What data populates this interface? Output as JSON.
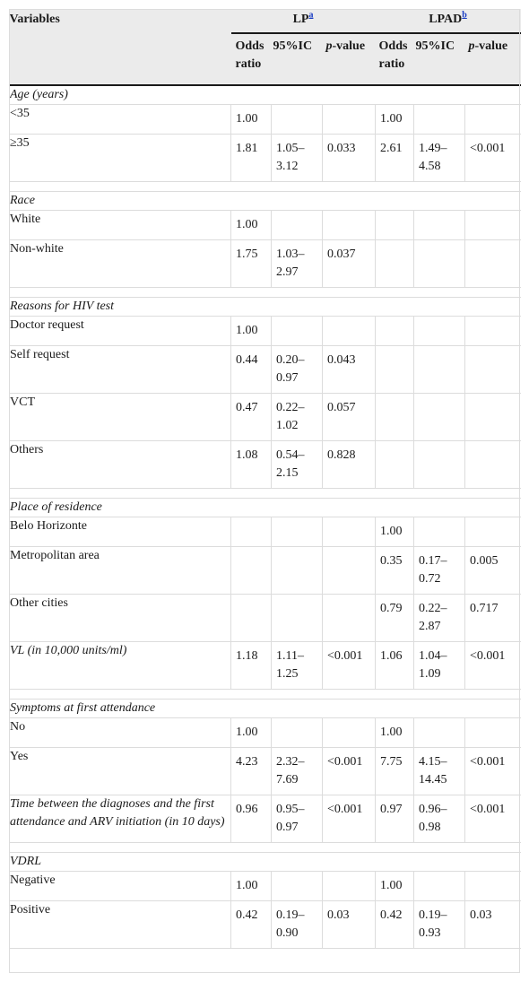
{
  "header": {
    "variables": "Variables",
    "lp": "LP",
    "lp_note": "a",
    "lpad": "LPAD",
    "lpad_note": "b",
    "odds_ratio": "Odds ratio",
    "ci": "95%IC",
    "p_prefix": "p",
    "p_suffix": "-value"
  },
  "rows": [
    {
      "type": "section",
      "label": "Age (years)"
    },
    {
      "type": "row",
      "label": "<35",
      "v": [
        "1.00",
        "",
        "",
        "1.00",
        "",
        ""
      ]
    },
    {
      "type": "row",
      "label": "≥35",
      "v": [
        "1.81",
        "1.05–3.12",
        "0.033",
        "2.61",
        "1.49–4.58",
        "<0.001"
      ]
    },
    {
      "type": "gap"
    },
    {
      "type": "section",
      "label": "Race"
    },
    {
      "type": "row",
      "label": "White",
      "v": [
        "1.00",
        "",
        "",
        "",
        "",
        ""
      ]
    },
    {
      "type": "row",
      "label": "Non-white",
      "v": [
        "1.75",
        "1.03–2.97",
        "0.037",
        "",
        "",
        ""
      ]
    },
    {
      "type": "gap"
    },
    {
      "type": "section",
      "label": "Reasons for HIV test"
    },
    {
      "type": "row",
      "label": "Doctor request",
      "v": [
        "1.00",
        "",
        "",
        "",
        "",
        ""
      ]
    },
    {
      "type": "row",
      "label": "Self request",
      "v": [
        "0.44",
        "0.20–0.97",
        "0.043",
        "",
        "",
        ""
      ]
    },
    {
      "type": "row",
      "label": "VCT",
      "v": [
        "0.47",
        "0.22–1.02",
        "0.057",
        "",
        "",
        ""
      ]
    },
    {
      "type": "row",
      "label": "Others",
      "v": [
        "1.08",
        "0.54–2.15",
        "0.828",
        "",
        "",
        ""
      ]
    },
    {
      "type": "gap"
    },
    {
      "type": "section",
      "label": "Place of residence"
    },
    {
      "type": "row",
      "label": "Belo Horizonte",
      "v": [
        "",
        "",
        "",
        "1.00",
        "",
        ""
      ]
    },
    {
      "type": "row",
      "label": "Metropolitan area",
      "v": [
        "",
        "",
        "",
        "0.35",
        "0.17–0.72",
        "0.005"
      ]
    },
    {
      "type": "row",
      "label": "Other cities",
      "v": [
        "",
        "",
        "",
        "0.79",
        "0.22–2.87",
        "0.717"
      ]
    },
    {
      "type": "row",
      "italic": true,
      "label": "VL (in 10,000 units/ml)",
      "v": [
        "1.18",
        "1.11–1.25",
        "<0.001",
        "1.06",
        "1.04–1.09",
        "<0.001"
      ]
    },
    {
      "type": "gap"
    },
    {
      "type": "section",
      "label": "Symptoms at first attendance"
    },
    {
      "type": "row",
      "label": "No",
      "v": [
        "1.00",
        "",
        "",
        "1.00",
        "",
        ""
      ]
    },
    {
      "type": "row",
      "label": "Yes",
      "v": [
        "4.23",
        "2.32–7.69",
        "<0.001",
        "7.75",
        "4.15–14.45",
        "<0.001"
      ]
    },
    {
      "type": "row",
      "italic": true,
      "label": "Time between the diagnoses and the first attendance and ARV initiation (in 10 days)",
      "v": [
        "0.96",
        "0.95–0.97",
        "<0.001",
        "0.97",
        "0.96–0.98",
        "<0.001"
      ]
    },
    {
      "type": "gap"
    },
    {
      "type": "section",
      "label": "VDRL"
    },
    {
      "type": "row",
      "label": "Negative",
      "v": [
        "1.00",
        "",
        "",
        "1.00",
        "",
        ""
      ]
    },
    {
      "type": "row",
      "label": "Positive",
      "v": [
        "0.42",
        "0.19–0.90",
        "0.03",
        "0.42",
        "0.19–0.93",
        "0.03"
      ]
    }
  ]
}
